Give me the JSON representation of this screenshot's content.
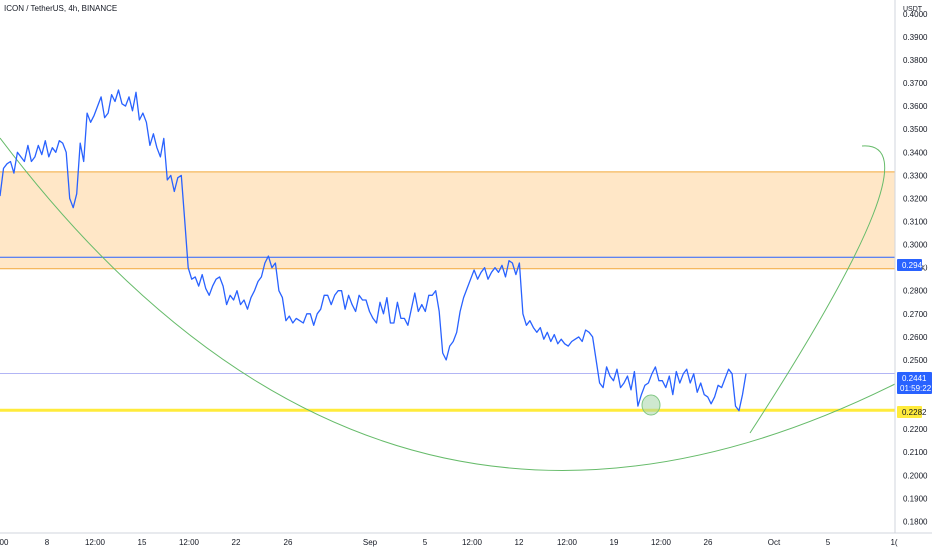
{
  "header": {
    "title": "ICON / TetherUS, 4h, BINANCE"
  },
  "chart_data": {
    "type": "line",
    "title": "ICON / TetherUS, 4h, BINANCE",
    "unit": "USDT",
    "ylim": [
      0.175,
      0.406
    ],
    "y_ticks": [
      "0.4000",
      "0.3900",
      "0.3800",
      "0.3700",
      "0.3600",
      "0.3500",
      "0.3400",
      "0.3300",
      "0.3200",
      "0.3100",
      "0.3000",
      "0.2900",
      "0.2800",
      "0.2700",
      "0.2600",
      "0.2500",
      "0.2200",
      "0.2100",
      "0.2000",
      "0.1900",
      "0.1800"
    ],
    "x_ticks": [
      "00",
      "8",
      "12:00",
      "15",
      "12:00",
      "22",
      "26",
      "Sep",
      "5",
      "12:00",
      "12",
      "12:00",
      "19",
      "12:00",
      "26",
      "Oct",
      "5",
      "1("
    ],
    "series": [
      {
        "values": [
          0.321,
          0.333,
          0.335,
          0.336,
          0.331,
          0.34,
          0.338,
          0.336,
          0.343,
          0.336,
          0.338,
          0.343,
          0.339,
          0.345,
          0.338,
          0.342,
          0.34,
          0.345,
          0.344,
          0.34,
          0.32,
          0.316,
          0.322,
          0.344,
          0.336,
          0.357,
          0.353,
          0.356,
          0.36,
          0.364,
          0.355,
          0.357,
          0.365,
          0.362,
          0.367,
          0.361,
          0.36,
          0.364,
          0.358,
          0.366,
          0.354,
          0.357,
          0.353,
          0.343,
          0.348,
          0.342,
          0.338,
          0.346,
          0.328,
          0.33,
          0.323,
          0.329,
          0.33,
          0.31,
          0.29,
          0.285,
          0.286,
          0.282,
          0.287,
          0.281,
          0.278,
          0.282,
          0.285,
          0.286,
          0.282,
          0.274,
          0.278,
          0.276,
          0.28,
          0.274,
          0.276,
          0.272,
          0.277,
          0.28,
          0.284,
          0.286,
          0.292,
          0.295,
          0.29,
          0.292,
          0.28,
          0.277,
          0.267,
          0.269,
          0.266,
          0.268,
          0.267,
          0.266,
          0.27,
          0.27,
          0.265,
          0.27,
          0.272,
          0.278,
          0.278,
          0.274,
          0.278,
          0.28,
          0.28,
          0.272,
          0.278,
          0.274,
          0.271,
          0.278,
          0.276,
          0.276,
          0.271,
          0.268,
          0.266,
          0.275,
          0.27,
          0.277,
          0.266,
          0.266,
          0.275,
          0.268,
          0.268,
          0.265,
          0.272,
          0.279,
          0.271,
          0.274,
          0.271,
          0.278,
          0.278,
          0.28,
          0.271,
          0.253,
          0.25,
          0.256,
          0.258,
          0.262,
          0.271,
          0.277,
          0.281,
          0.285,
          0.289,
          0.285,
          0.288,
          0.29,
          0.285,
          0.288,
          0.29,
          0.288,
          0.291,
          0.286,
          0.293,
          0.292,
          0.287,
          0.292,
          0.27,
          0.265,
          0.267,
          0.264,
          0.262,
          0.264,
          0.259,
          0.262,
          0.258,
          0.261,
          0.257,
          0.259,
          0.257,
          0.256,
          0.258,
          0.259,
          0.26,
          0.258,
          0.263,
          0.262,
          0.26,
          0.25,
          0.24,
          0.238,
          0.247,
          0.243,
          0.241,
          0.246,
          0.238,
          0.24,
          0.243,
          0.237,
          0.245,
          0.23,
          0.235,
          0.239,
          0.24,
          0.244,
          0.247,
          0.241,
          0.241,
          0.238,
          0.243,
          0.235,
          0.245,
          0.24,
          0.244,
          0.246,
          0.24,
          0.244,
          0.236,
          0.24,
          0.235,
          0.234,
          0.231,
          0.234,
          0.239,
          0.238,
          0.242,
          0.246,
          0.244,
          0.23,
          0.228,
          0.235,
          0.2441
        ],
        "color": "#2962ff"
      }
    ],
    "zone": {
      "from": 0.2895,
      "to": 0.3315,
      "color": "#ffe3bd",
      "border": "#f2a93b"
    },
    "horizontal_lines": [
      {
        "value": 0.2945,
        "color": "#2962ff",
        "label": "0.2945"
      },
      {
        "value": 0.2282,
        "color": "#ffeb3b",
        "label": "0.2282"
      },
      {
        "value": 0.2441,
        "color": "#b2b5f5",
        "label": "0.2441"
      }
    ],
    "price_tags": {
      "current": {
        "value": 0.2441,
        "label": "0.2441",
        "timer": "01:59:22",
        "color": "#2962ff"
      },
      "resistance": {
        "value": 0.2945,
        "label": "0.2945",
        "color": "#2962ff"
      },
      "support": {
        "value": 0.2282,
        "label": "0.2282",
        "color": "#ffeb3b"
      }
    },
    "marker": {
      "at_value": 0.2282,
      "color": "#a5d6a7"
    },
    "curves_color": "#66bb6a"
  }
}
